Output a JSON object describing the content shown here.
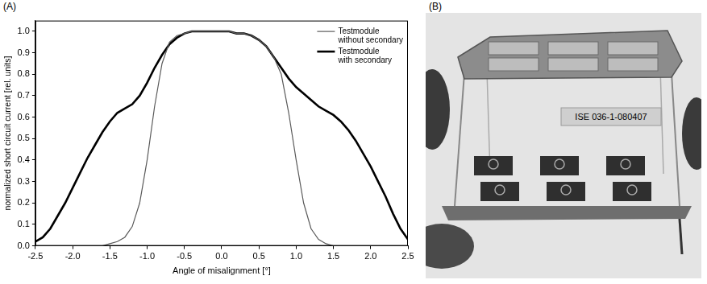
{
  "chart_data": {
    "type": "line",
    "x_label": "Angle of misalignment [°]",
    "y_label": "normalized short circuit current [rel. units]",
    "x": [
      -2.5,
      -2.4,
      -2.3,
      -2.2,
      -2.1,
      -2.0,
      -1.9,
      -1.8,
      -1.7,
      -1.6,
      -1.5,
      -1.4,
      -1.3,
      -1.2,
      -1.1,
      -1.0,
      -0.9,
      -0.8,
      -0.7,
      -0.6,
      -0.5,
      -0.4,
      -0.3,
      -0.2,
      -0.1,
      0.0,
      0.1,
      0.2,
      0.3,
      0.4,
      0.5,
      0.6,
      0.7,
      0.8,
      0.9,
      1.0,
      1.1,
      1.2,
      1.3,
      1.4,
      1.5,
      1.6,
      1.7,
      1.8,
      1.9,
      2.0,
      2.1,
      2.2,
      2.3,
      2.4,
      2.5
    ],
    "series": [
      {
        "name": "Testmodule without secondary",
        "color": "#5a5a5a",
        "marker": "none",
        "line_style": "solid",
        "values": [
          0,
          0,
          0,
          0,
          0,
          0,
          0,
          0,
          0,
          0,
          0.01,
          0.02,
          0.04,
          0.09,
          0.2,
          0.4,
          0.65,
          0.85,
          0.95,
          0.98,
          0.99,
          1,
          1,
          1,
          1,
          1,
          1,
          0.99,
          0.99,
          0.98,
          0.96,
          0.93,
          0.88,
          0.8,
          0.62,
          0.4,
          0.2,
          0.08,
          0.03,
          0.01,
          0,
          0,
          0,
          0,
          0,
          0,
          0,
          0,
          0,
          0,
          0
        ]
      },
      {
        "name": "Testmodule with secondary",
        "color": "#000000",
        "marker": "none",
        "line_style": "solid",
        "values": [
          0.02,
          0.04,
          0.08,
          0.14,
          0.2,
          0.27,
          0.34,
          0.41,
          0.47,
          0.53,
          0.58,
          0.62,
          0.64,
          0.66,
          0.7,
          0.76,
          0.83,
          0.89,
          0.94,
          0.97,
          0.99,
          1,
          1,
          1,
          1,
          1,
          1,
          0.99,
          0.99,
          0.98,
          0.96,
          0.93,
          0.88,
          0.83,
          0.78,
          0.74,
          0.71,
          0.68,
          0.65,
          0.63,
          0.61,
          0.58,
          0.54,
          0.49,
          0.43,
          0.37,
          0.3,
          0.23,
          0.15,
          0.08,
          0.03
        ]
      }
    ],
    "xlim": [
      -2.5,
      2.5
    ],
    "xticks": [
      -2.5,
      {
        "value": -2,
        "label": "-2.0"
      },
      -1.5,
      {
        "value": -1,
        "label": "-1.0"
      },
      -0.5,
      {
        "value": 0,
        "label": "0.0"
      },
      0.5,
      {
        "value": 1,
        "label": "1.0"
      },
      1.5,
      {
        "value": 2,
        "label": "2.0"
      },
      2.5
    ],
    "ylim": [
      0,
      1.05
    ],
    "yticks": [
      {
        "value": 0,
        "label": "0.0"
      },
      0.1,
      0.2,
      0.3,
      0.4,
      0.5,
      0.6,
      0.7,
      0.8,
      0.9,
      {
        "value": 1,
        "label": "1.0"
      }
    ],
    "grid": false,
    "legend": "upper right"
  },
  "panels": [
    {
      "letter": "(A)"
    },
    {
      "letter": "(B)",
      "label": "ISE 036-1-080407"
    }
  ]
}
